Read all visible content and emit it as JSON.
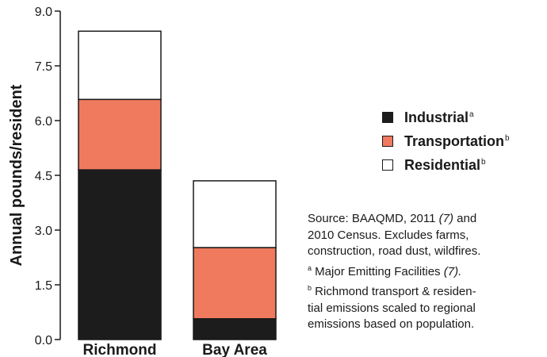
{
  "chart_data": {
    "type": "bar",
    "stacked": true,
    "categories": [
      "Richmond",
      "Bay Area"
    ],
    "series": [
      {
        "name": "Industrial",
        "values": [
          4.65,
          0.57
        ],
        "color": "#1c1c1c"
      },
      {
        "name": "Transportation",
        "values": [
          1.93,
          1.95
        ],
        "color": "#f07a5e"
      },
      {
        "name": "Residential",
        "values": [
          1.87,
          1.83
        ],
        "color": "#ffffff"
      }
    ],
    "ylabel": "Annual pounds/resident",
    "yticks": [
      "0.0",
      "1.5",
      "3.0",
      "4.5",
      "6.0",
      "7.5",
      "9.0"
    ],
    "ylim": [
      0,
      9
    ],
    "grid": false,
    "legend_position": "right"
  },
  "legend": [
    {
      "label": "Industrial",
      "sup": "a",
      "color": "#1c1c1c"
    },
    {
      "label": "Transportation",
      "sup": "b",
      "color": "#f07a5e"
    },
    {
      "label": "Residential",
      "sup": "b",
      "color": "#ffffff"
    }
  ],
  "source": {
    "line1_pre": "Source: BAAQMD, 2011 ",
    "line1_ref": "(7)",
    "line1_post": " and",
    "line2": "2010 Census. Excludes farms,",
    "line3": "construction, road dust, wildfires.",
    "line4_sup": "a",
    "line4_text": " Major Emitting Facilities ",
    "line4_ref": "(7).",
    "line5_sup": "b",
    "line5_text": " Richmond transport & residen-",
    "line6": "tial emissions scaled to regional",
    "line7": "emissions based on population."
  }
}
